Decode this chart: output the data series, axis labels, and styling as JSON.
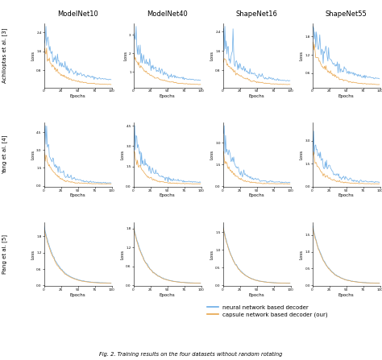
{
  "col_labels": [
    "ModelNet10",
    "ModelNet40",
    "ShapeNet16",
    "ShapeNet55"
  ],
  "row_labels": [
    "Achlioptas et al. [3]",
    "Yang et al. [4]",
    "Pang et al. [5]"
  ],
  "xlabel": "Epochs",
  "ylabel": "Loss",
  "nn_color": "#6aace6",
  "caps_color": "#e8a44a",
  "legend_labels": [
    "neural network based decoder",
    "capsule network based decoder (our)"
  ],
  "fig_caption": "Fig. 2. Training results on the four datasets without random rotating",
  "bg_color": "#ffffff",
  "line_width": 0.55,
  "seed": 42,
  "n_epochs": 100
}
